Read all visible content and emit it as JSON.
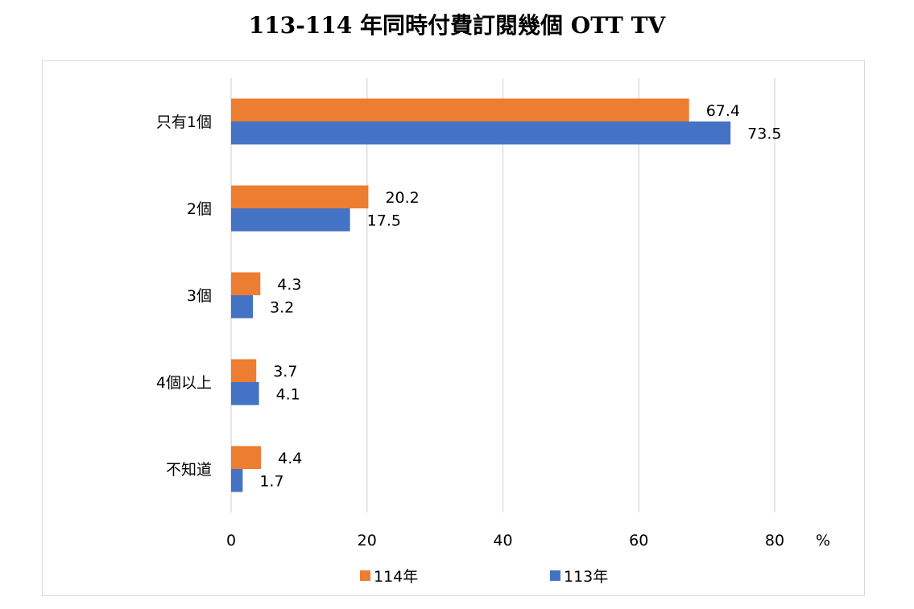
{
  "chart_data": {
    "type": "bar",
    "orientation": "horizontal",
    "title": "113-114 年同時付費訂閱幾個 OTT TV",
    "categories": [
      "只有1個",
      "2個",
      "3個",
      "4個以上",
      "不知道"
    ],
    "series": [
      {
        "name": "114年",
        "color": "#ED7D31",
        "values": [
          67.4,
          20.2,
          4.3,
          3.7,
          4.4
        ]
      },
      {
        "name": "113年",
        "color": "#4472C4",
        "values": [
          73.5,
          17.5,
          3.2,
          4.1,
          1.7
        ]
      }
    ],
    "xlabel": "%",
    "xlim": [
      0,
      80
    ],
    "xticks": [
      0,
      20,
      40,
      60,
      80
    ],
    "grid": true,
    "legend": "bottom"
  }
}
